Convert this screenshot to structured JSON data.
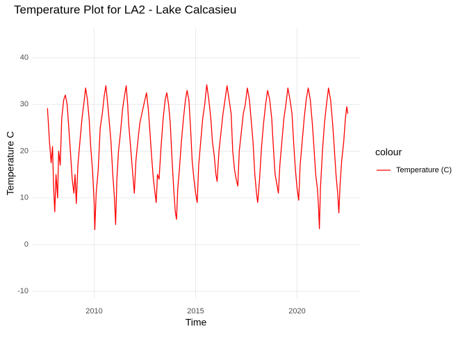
{
  "chart_data": {
    "type": "line",
    "title": "Temperature Plot for LA2 - Lake Calcasieu",
    "x_label": "Time",
    "y_label": "Temperature C",
    "legend_title": "colour",
    "legend_position": "right",
    "grid": true,
    "xlim": [
      2006.97,
      2023.1
    ],
    "xticks": [
      2010,
      2015,
      2020
    ],
    "ylim": [
      -11.6,
      46.4
    ],
    "yticks": [
      -10,
      0,
      10,
      20,
      30,
      40
    ],
    "x": [
      2007.7,
      2007.8,
      2007.88,
      2007.95,
      2008.0,
      2008.06,
      2008.12,
      2008.2,
      2008.25,
      2008.33,
      2008.4,
      2008.5,
      2008.58,
      2008.67,
      2008.75,
      2008.83,
      2008.92,
      2009.0,
      2009.06,
      2009.12,
      2009.2,
      2009.3,
      2009.4,
      2009.5,
      2009.58,
      2009.67,
      2009.75,
      2009.83,
      2009.92,
      2010.0,
      2010.03,
      2010.1,
      2010.2,
      2010.3,
      2010.4,
      2010.5,
      2010.58,
      2010.67,
      2010.75,
      2010.83,
      2010.92,
      2011.0,
      2011.06,
      2011.12,
      2011.2,
      2011.3,
      2011.4,
      2011.5,
      2011.58,
      2011.65,
      2011.7,
      2011.98,
      2012.06,
      2012.15,
      2012.25,
      2012.35,
      2012.5,
      2012.58,
      2012.67,
      2012.75,
      2012.83,
      2012.92,
      2013.0,
      2013.06,
      2013.12,
      2013.2,
      2013.3,
      2013.4,
      2013.5,
      2013.58,
      2013.67,
      2013.75,
      2013.83,
      2013.92,
      2014.0,
      2014.06,
      2014.12,
      2014.2,
      2014.3,
      2014.4,
      2014.5,
      2014.58,
      2014.67,
      2014.75,
      2014.83,
      2014.92,
      2015.0,
      2015.08,
      2015.15,
      2015.25,
      2015.35,
      2015.45,
      2015.55,
      2015.65,
      2015.75,
      2015.83,
      2015.92,
      2016.0,
      2016.06,
      2016.15,
      2016.25,
      2016.35,
      2016.45,
      2016.55,
      2016.65,
      2016.75,
      2016.83,
      2016.92,
      2017.0,
      2017.08,
      2017.15,
      2017.25,
      2017.35,
      2017.45,
      2017.55,
      2017.65,
      2017.75,
      2017.83,
      2017.92,
      2018.0,
      2018.06,
      2018.15,
      2018.25,
      2018.35,
      2018.45,
      2018.55,
      2018.65,
      2018.75,
      2018.83,
      2018.92,
      2019.0,
      2019.08,
      2019.15,
      2019.25,
      2019.35,
      2019.45,
      2019.55,
      2019.65,
      2019.75,
      2019.83,
      2019.92,
      2020.0,
      2020.08,
      2020.15,
      2020.25,
      2020.35,
      2020.45,
      2020.55,
      2020.65,
      2020.75,
      2020.83,
      2020.92,
      2021.0,
      2021.06,
      2021.1,
      2021.15,
      2021.25,
      2021.35,
      2021.45,
      2021.55,
      2021.65,
      2021.75,
      2021.83,
      2021.92,
      2022.0,
      2022.06,
      2022.12,
      2022.2,
      2022.3,
      2022.38,
      2022.45,
      2022.5
    ],
    "series": [
      {
        "name": "Temperature (C)",
        "color": "#ff0000",
        "values": [
          29.2,
          22,
          17.5,
          21,
          12.5,
          7,
          15,
          10,
          20,
          17,
          27,
          31,
          32,
          30,
          25,
          20,
          14,
          11,
          15,
          8.8,
          17,
          22,
          27,
          30.5,
          33.5,
          31,
          27,
          21,
          16,
          9,
          3.2,
          11,
          16,
          25,
          28,
          32,
          34,
          30,
          26,
          22,
          15,
          10,
          4.3,
          14,
          20,
          24,
          29,
          32,
          34,
          30,
          26,
          11,
          18,
          22,
          26,
          28,
          31,
          32.5,
          29,
          24,
          19,
          14,
          11,
          9,
          15,
          14,
          21,
          27,
          31,
          32.5,
          30,
          26,
          19,
          12,
          7,
          5.4,
          12,
          16,
          22,
          27,
          31,
          33,
          31,
          25,
          18,
          14,
          11,
          9,
          17,
          22,
          27,
          30,
          34.2,
          31,
          27,
          22,
          19,
          15,
          13.5,
          20,
          24,
          28,
          31,
          34,
          31,
          28,
          20,
          16,
          14,
          12.5,
          20,
          24,
          28,
          30,
          33.5,
          31,
          26,
          22,
          15,
          11,
          9,
          14,
          21,
          26,
          30,
          33,
          31,
          27,
          21,
          15,
          13,
          11,
          17,
          22,
          27,
          30,
          33.5,
          31,
          28,
          22,
          16,
          12,
          9.5,
          17,
          22,
          27,
          31,
          33.5,
          31,
          26,
          21,
          15,
          12,
          8,
          3.4,
          12,
          20,
          26,
          30,
          33.5,
          31,
          26,
          21,
          15,
          11,
          6.8,
          13,
          18,
          22,
          27,
          29.5,
          28
        ]
      }
    ]
  }
}
